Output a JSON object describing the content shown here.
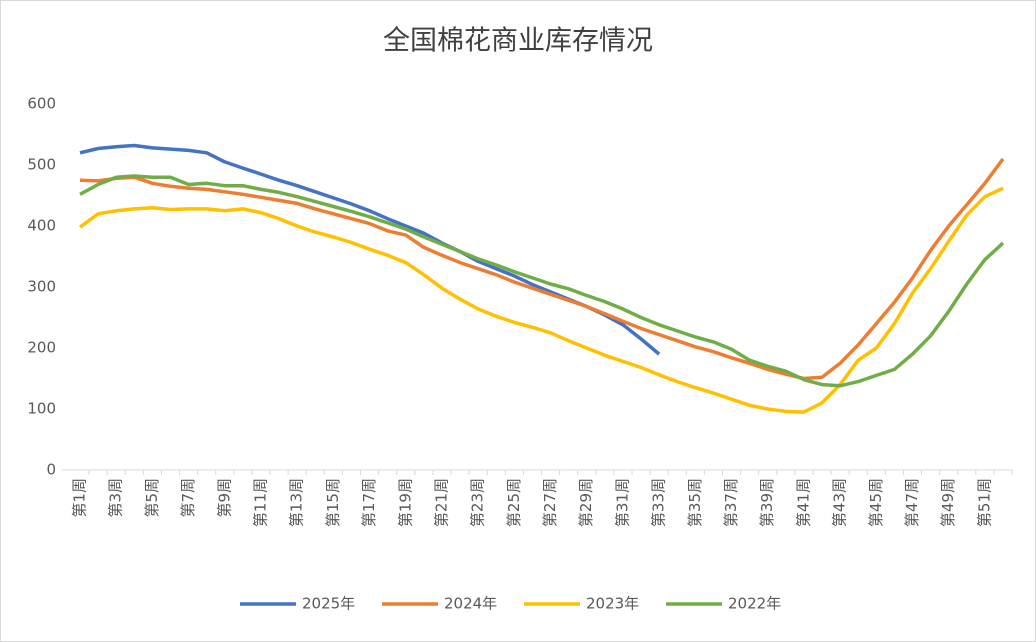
{
  "chart_data": {
    "type": "line",
    "title": "全国棉花商业库存情况",
    "categories": [
      "第1周",
      null,
      "第3周",
      null,
      "第5周",
      null,
      "第7周",
      null,
      "第9周",
      null,
      "第11周",
      null,
      "第13周",
      null,
      "第15周",
      null,
      "第17周",
      null,
      "第19周",
      null,
      "第21周",
      null,
      "第23周",
      null,
      "第25周",
      null,
      "第27周",
      null,
      "第29周",
      null,
      "第31周",
      null,
      "第33周",
      null,
      "第35周",
      null,
      "第37周",
      null,
      "第39周",
      null,
      "第41周",
      null,
      "第43周",
      null,
      "第45周",
      null,
      "第47周",
      null,
      "第49周",
      null,
      "第51周",
      null
    ],
    "series": [
      {
        "name": "2025年",
        "color": "#4472c4",
        "values": [
          520,
          527,
          530,
          532,
          528,
          526,
          524,
          520,
          505,
          495,
          485,
          475,
          466,
          456,
          446,
          436,
          425,
          412,
          400,
          388,
          372,
          358,
          342,
          330,
          318,
          304,
          292,
          280,
          268,
          254,
          238,
          215,
          190,
          null,
          null,
          null,
          null,
          null,
          null,
          null,
          null,
          null,
          null,
          null,
          null,
          null,
          null,
          null,
          null,
          null,
          null,
          null
        ]
      },
      {
        "name": "2024年",
        "color": "#ed7d31",
        "values": [
          475,
          474,
          478,
          480,
          470,
          465,
          462,
          460,
          456,
          452,
          447,
          442,
          437,
          428,
          420,
          412,
          404,
          392,
          385,
          365,
          352,
          340,
          330,
          320,
          308,
          298,
          288,
          278,
          268,
          256,
          244,
          232,
          222,
          212,
          202,
          194,
          184,
          175,
          165,
          157,
          150,
          152,
          175,
          205,
          240,
          275,
          315,
          360,
          400,
          435,
          470,
          510
        ]
      },
      {
        "name": "2023年",
        "color": "#ffc000",
        "values": [
          398,
          420,
          425,
          428,
          430,
          427,
          428,
          428,
          425,
          428,
          422,
          412,
          400,
          390,
          382,
          373,
          362,
          352,
          340,
          320,
          298,
          280,
          264,
          252,
          242,
          234,
          225,
          212,
          200,
          188,
          178,
          168,
          156,
          145,
          135,
          126,
          116,
          106,
          100,
          96,
          95,
          110,
          140,
          180,
          200,
          240,
          290,
          330,
          375,
          418,
          448,
          462
        ]
      },
      {
        "name": "2022年",
        "color": "#70ad47",
        "values": [
          452,
          468,
          480,
          482,
          480,
          480,
          468,
          470,
          466,
          466,
          460,
          455,
          448,
          440,
          432,
          424,
          415,
          405,
          395,
          382,
          370,
          358,
          346,
          336,
          325,
          315,
          305,
          297,
          286,
          276,
          264,
          250,
          238,
          228,
          218,
          210,
          198,
          180,
          170,
          162,
          148,
          140,
          138,
          145,
          155,
          165,
          190,
          220,
          260,
          305,
          345,
          372
        ]
      }
    ],
    "ylim": [
      0,
      600
    ],
    "yticks": [
      0,
      100,
      200,
      300,
      400,
      500,
      600
    ],
    "grid": false,
    "legend": "bottom"
  }
}
